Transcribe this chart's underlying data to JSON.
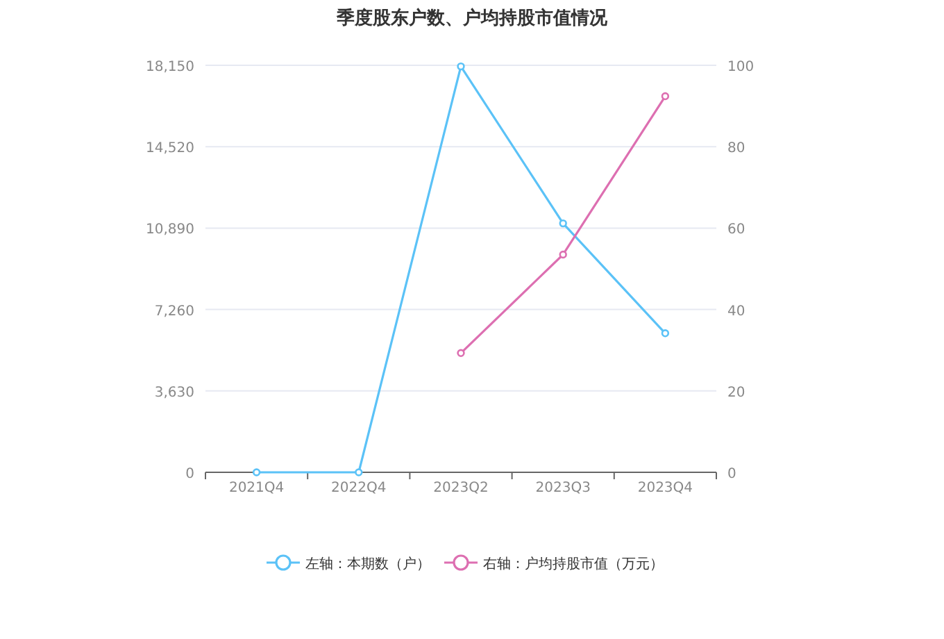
{
  "chart_data": {
    "type": "line",
    "title": "季度股东户数、户均持股市值情况",
    "categories": [
      "2021Q4",
      "2022Q4",
      "2023Q2",
      "2023Q3",
      "2023Q4"
    ],
    "series": [
      {
        "name": "左轴：本期数（户）",
        "color": "#5bc2f7",
        "values": [
          0,
          0,
          18100,
          11100,
          6200
        ]
      },
      {
        "name": "右轴：户均持股市值（万元）",
        "color": "#dd6fb1",
        "axis": "y2",
        "values": [
          null,
          null,
          29.3,
          53.5,
          92.4
        ]
      }
    ],
    "ylim": [
      0,
      18150
    ],
    "yticks": [
      {
        "value": 0,
        "label": "0"
      },
      {
        "value": 3630,
        "label": "3,630"
      },
      {
        "value": 7260,
        "label": "7,260"
      },
      {
        "value": 10890,
        "label": "10,890"
      },
      {
        "value": 14520,
        "label": "14,520"
      },
      {
        "value": 18150,
        "label": "18,150"
      }
    ],
    "y2lim": [
      0,
      100
    ],
    "y2ticks": [
      0,
      20,
      40,
      60,
      80,
      100
    ],
    "grid": "y",
    "legend": "bottom",
    "marker": "circle",
    "line_style": "solid"
  }
}
